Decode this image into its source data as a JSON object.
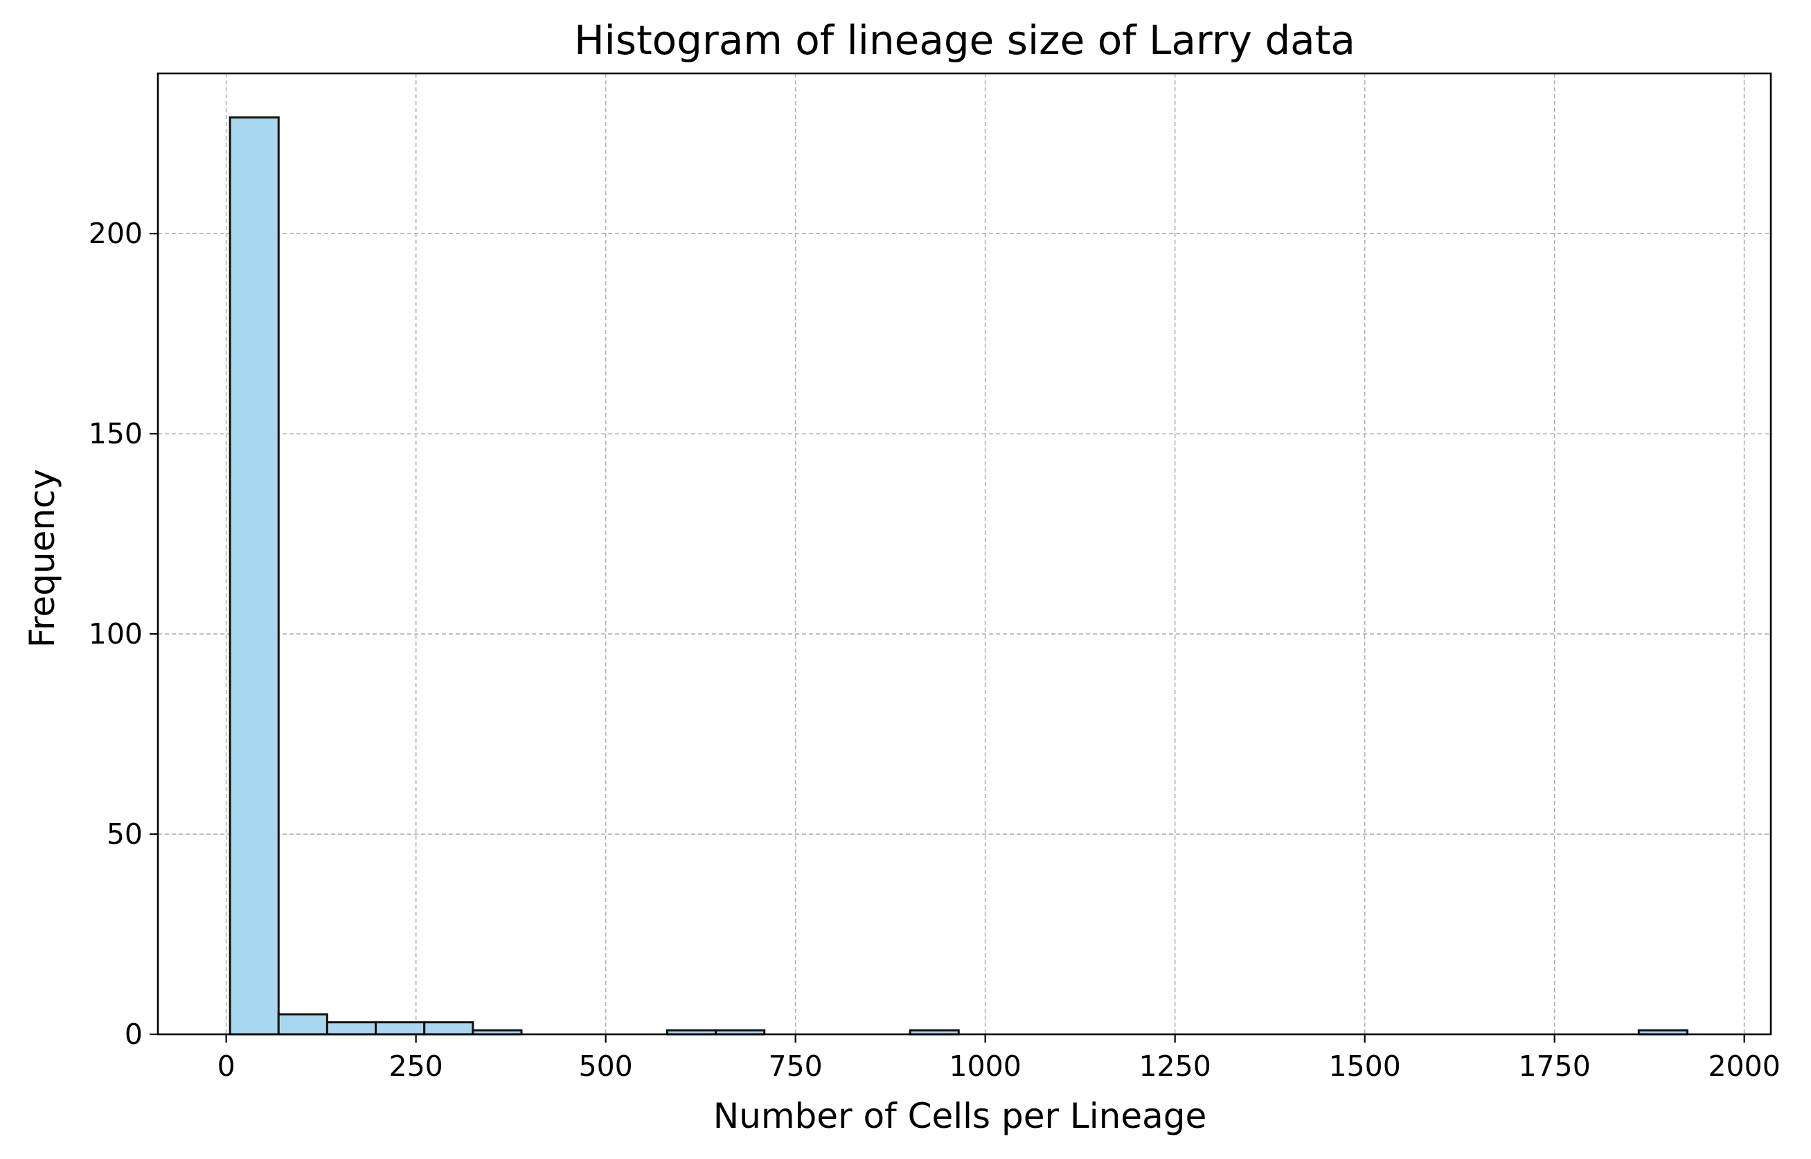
{
  "chart_data": {
    "type": "bar",
    "title": "Histogram of lineage size of Larry data",
    "xlabel": "Number of Cells per Lineage",
    "ylabel": "Frequency",
    "xlim": [
      -90,
      2035
    ],
    "ylim": [
      0,
      240
    ],
    "grid": true,
    "bar_color": "#a8d8ef",
    "edge_color": "#111111",
    "xticks": [
      0,
      250,
      500,
      750,
      1000,
      1250,
      1500,
      1750,
      2000
    ],
    "xtick_labels": [
      "0",
      "250",
      "500",
      "750",
      "1000",
      "1250",
      "1500",
      "1750",
      "2000"
    ],
    "yticks": [
      0,
      50,
      100,
      150,
      200
    ],
    "ytick_labels": [
      "0",
      "50",
      "100",
      "150",
      "200"
    ],
    "bins": [
      {
        "start": 5,
        "end": 69,
        "value": 229
      },
      {
        "start": 69,
        "end": 133,
        "value": 5
      },
      {
        "start": 133,
        "end": 197,
        "value": 3
      },
      {
        "start": 197,
        "end": 261,
        "value": 3
      },
      {
        "start": 261,
        "end": 325,
        "value": 3
      },
      {
        "start": 325,
        "end": 389,
        "value": 1
      },
      {
        "start": 389,
        "end": 453,
        "value": 0
      },
      {
        "start": 453,
        "end": 517,
        "value": 0
      },
      {
        "start": 517,
        "end": 581,
        "value": 0
      },
      {
        "start": 581,
        "end": 645,
        "value": 1
      },
      {
        "start": 645,
        "end": 709,
        "value": 1
      },
      {
        "start": 709,
        "end": 773,
        "value": 0
      },
      {
        "start": 773,
        "end": 837,
        "value": 0
      },
      {
        "start": 837,
        "end": 901,
        "value": 0
      },
      {
        "start": 901,
        "end": 965,
        "value": 1
      },
      {
        "start": 965,
        "end": 1029,
        "value": 0
      },
      {
        "start": 1029,
        "end": 1093,
        "value": 0
      },
      {
        "start": 1093,
        "end": 1157,
        "value": 0
      },
      {
        "start": 1157,
        "end": 1221,
        "value": 0
      },
      {
        "start": 1221,
        "end": 1285,
        "value": 0
      },
      {
        "start": 1285,
        "end": 1349,
        "value": 0
      },
      {
        "start": 1349,
        "end": 1413,
        "value": 0
      },
      {
        "start": 1413,
        "end": 1477,
        "value": 0
      },
      {
        "start": 1477,
        "end": 1541,
        "value": 0
      },
      {
        "start": 1541,
        "end": 1605,
        "value": 0
      },
      {
        "start": 1605,
        "end": 1669,
        "value": 0
      },
      {
        "start": 1669,
        "end": 1733,
        "value": 0
      },
      {
        "start": 1733,
        "end": 1797,
        "value": 0
      },
      {
        "start": 1797,
        "end": 1861,
        "value": 0
      },
      {
        "start": 1861,
        "end": 1925,
        "value": 1
      }
    ]
  }
}
